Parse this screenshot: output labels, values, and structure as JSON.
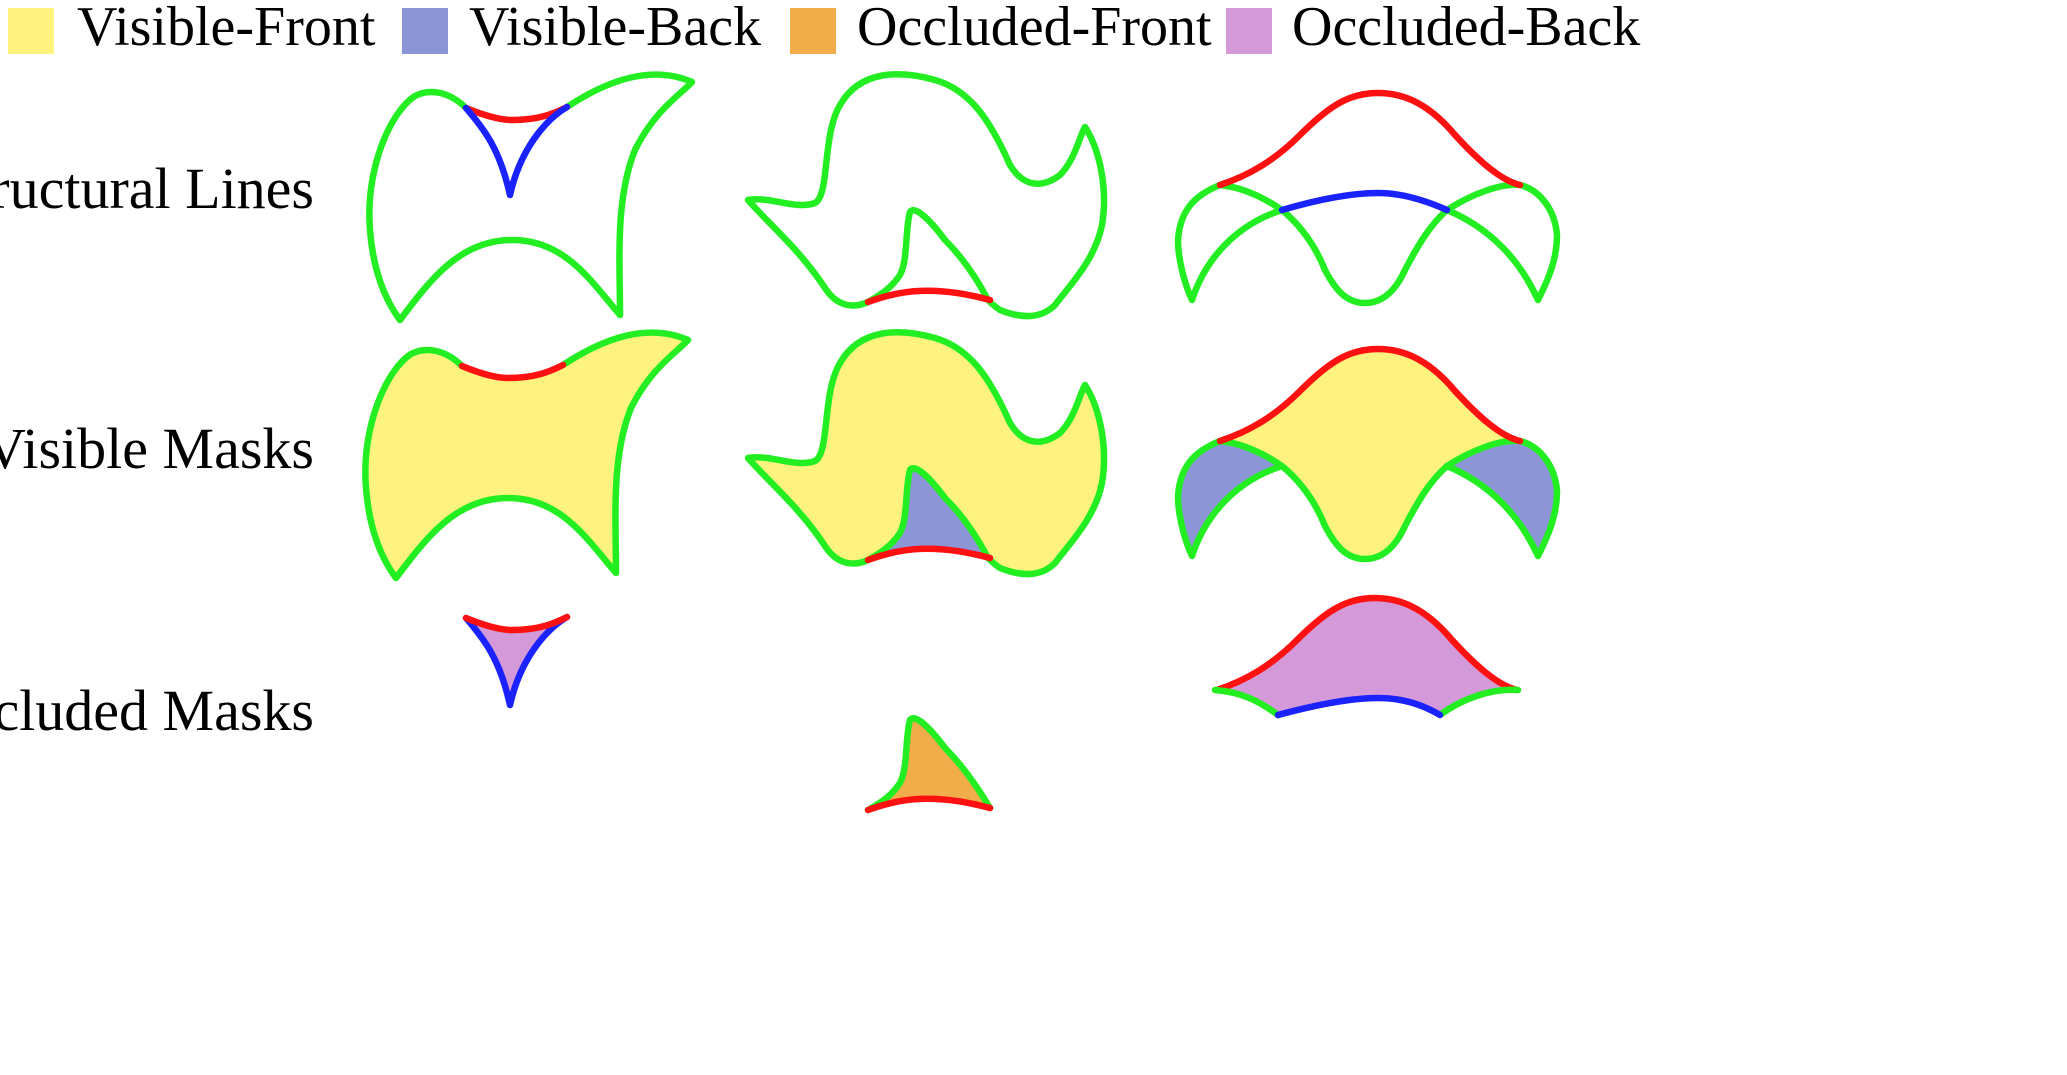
{
  "legend": [
    {
      "label": "Visible-Front",
      "color": "#fff37f"
    },
    {
      "label": "Visible-Back",
      "color": "#8c96d7"
    },
    {
      "label": "Occluded-Front",
      "color": "#f2ad4b"
    },
    {
      "label": "Occluded-Back",
      "color": "#d399d8"
    }
  ],
  "rows": {
    "structural": "Structural Lines",
    "visible": "Visible Masks",
    "occluded": "Occluded Masks"
  },
  "line_colors": {
    "green": "#22ee22",
    "red": "#ff1111",
    "blue": "#1a22ff"
  }
}
